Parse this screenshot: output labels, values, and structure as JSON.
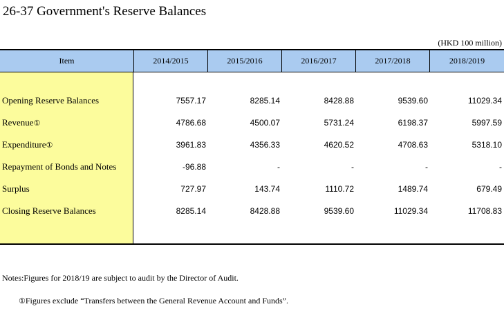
{
  "title": "26-37  Government's Reserve Balances",
  "unit": "(HKD 100 million)",
  "header": {
    "item": "Item",
    "years": [
      "2014/2015",
      "2015/2016",
      "2016/2017",
      "2017/2018",
      "2018/2019"
    ]
  },
  "rows": [
    {
      "label": "Opening Reserve Balances",
      "mark": "",
      "values": [
        "7557.17",
        "8285.14",
        "8428.88",
        "9539.60",
        "11029.34"
      ]
    },
    {
      "label": "Revenue",
      "mark": "①",
      "values": [
        "4786.68",
        "4500.07",
        "5731.24",
        "6198.37",
        "5997.59"
      ]
    },
    {
      "label": "Expenditure",
      "mark": "①",
      "values": [
        "3961.83",
        "4356.33",
        "4620.52",
        "4708.63",
        "5318.10"
      ]
    },
    {
      "label": "Repayment of Bonds and Notes",
      "mark": "",
      "values": [
        "-96.88",
        "-",
        "-",
        "-",
        "-"
      ]
    },
    {
      "label": "Surplus",
      "mark": "",
      "values": [
        "727.97",
        "143.74",
        "1110.72",
        "1489.74",
        "679.49"
      ]
    },
    {
      "label": "Closing Reserve Balances",
      "mark": "",
      "values": [
        "8285.14",
        "8428.88",
        "9539.60",
        "11029.34",
        "11708.83"
      ]
    }
  ],
  "notes": {
    "line1": "Notes:Figures for 2018/19 are subject to audit by the Director of Audit.",
    "line2_mark": "①",
    "line2": "Figures exclude “Transfers between the General Revenue Account and Funds”."
  },
  "colors": {
    "header_bg": "#aacbf0",
    "item_col_bg": "#fcfc9c"
  }
}
